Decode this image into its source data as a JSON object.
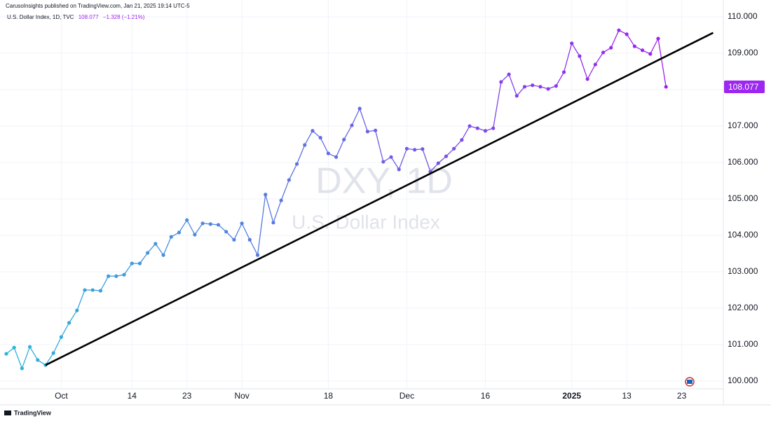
{
  "header": "CarusoInsights published on TradingView.com, Jan 21, 2025 19:14 UTC-5",
  "footer": "TradingView",
  "chart_data": {
    "type": "line",
    "legend": {
      "name": "U.S. Dollar Index, 1D, TVC",
      "change": "−1.328 (−1.21%)"
    },
    "watermark": {
      "symbol": "DXY, 1D",
      "description": "U.S. Dollar Index"
    },
    "series": [
      {
        "name": "U.S. Dollar Index",
        "color_start": "#29b6d8",
        "color_end": "#a01ff0",
        "values": [
          100.75,
          100.92,
          100.35,
          100.94,
          100.58,
          100.44,
          100.77,
          101.21,
          101.6,
          101.94,
          102.5,
          102.5,
          102.48,
          102.88,
          102.88,
          102.92,
          103.23,
          103.23,
          103.52,
          103.77,
          103.46,
          103.96,
          104.08,
          104.42,
          104.02,
          104.33,
          104.31,
          104.29,
          104.1,
          103.88,
          104.33,
          103.88,
          103.46,
          105.12,
          104.35,
          104.96,
          105.52,
          105.96,
          106.48,
          106.87,
          106.68,
          106.25,
          106.15,
          106.63,
          107.02,
          107.48,
          106.85,
          106.88,
          106.02,
          106.15,
          105.81,
          106.38,
          106.35,
          106.37,
          105.75,
          105.98,
          106.17,
          106.38,
          106.62,
          107.0,
          106.94,
          106.87,
          106.94,
          108.21,
          108.42,
          107.83,
          108.08,
          108.12,
          108.08,
          108.02,
          108.1,
          108.48,
          109.27,
          108.92,
          108.29,
          108.69,
          109.02,
          109.15,
          109.63,
          109.52,
          109.19,
          109.08,
          108.98,
          109.4,
          108.077
        ]
      }
    ],
    "trend_line": {
      "x": [
        5,
        90
      ],
      "y": [
        100.44,
        109.56
      ],
      "color": "#000000"
    },
    "price_tag_color": "#9c27f0",
    "xlim": [
      -0.8,
      91.3
    ],
    "xticks": [
      {
        "value": 7,
        "label": "Oct"
      },
      {
        "value": 16,
        "label": "14"
      },
      {
        "value": 23,
        "label": "23"
      },
      {
        "value": 30,
        "label": "Nov"
      },
      {
        "value": 41,
        "label": "18"
      },
      {
        "value": 51,
        "label": "Dec"
      },
      {
        "value": 61,
        "label": "16"
      },
      {
        "value": 72,
        "label": "2025"
      },
      {
        "value": 79,
        "label": "13"
      },
      {
        "value": 86,
        "label": "23"
      }
    ],
    "ylim": [
      99.79,
      110.46
    ],
    "yticks": [
      {
        "value": 100,
        "label": "100.000"
      },
      {
        "value": 101,
        "label": "101.000"
      },
      {
        "value": 102,
        "label": "102.000"
      },
      {
        "value": 103,
        "label": "103.000"
      },
      {
        "value": 104,
        "label": "104.000"
      },
      {
        "value": 105,
        "label": "105.000"
      },
      {
        "value": 106,
        "label": "106.000"
      },
      {
        "value": 107,
        "label": "107.000"
      },
      {
        "value": 108,
        "label": "108.000"
      },
      {
        "value": 109,
        "label": "109.000"
      },
      {
        "value": 110,
        "label": "110.000"
      }
    ],
    "grid": true
  }
}
